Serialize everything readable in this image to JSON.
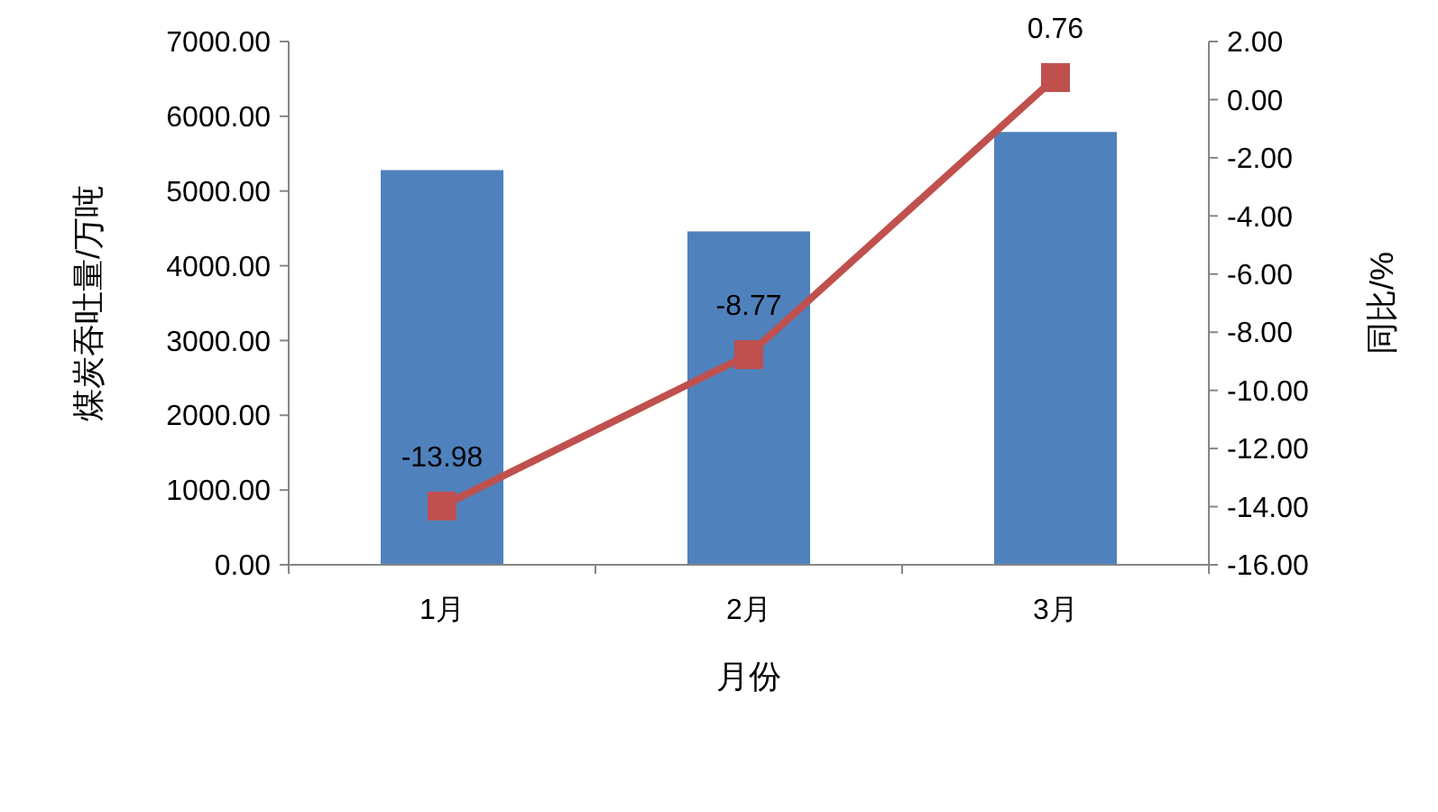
{
  "chart_data": {
    "type": "bar",
    "xlabel": "月份",
    "ylabel": "煤炭吞吐量/万吨",
    "y2label": "同比/%",
    "categories": [
      "1月",
      "2月",
      "3月"
    ],
    "series": [
      {
        "color": "#4f81bd",
        "values": [
          5280,
          4460,
          5790
        ]
      },
      {
        "type": "line",
        "axis": "y2",
        "color": "#c0504d",
        "marker": "square",
        "values": [
          -13.98,
          -8.77,
          0.76
        ],
        "value_labels": [
          "-13.98",
          "-8.77",
          "0.76"
        ]
      }
    ],
    "ylim": [
      0,
      7000
    ],
    "yticks": [
      {
        "value": 0,
        "label": "0.00"
      },
      {
        "value": 1000,
        "label": "1000.00"
      },
      {
        "value": 2000,
        "label": "2000.00"
      },
      {
        "value": 3000,
        "label": "3000.00"
      },
      {
        "value": 4000,
        "label": "4000.00"
      },
      {
        "value": 5000,
        "label": "5000.00"
      },
      {
        "value": 6000,
        "label": "6000.00"
      },
      {
        "value": 7000,
        "label": "7000.00"
      }
    ],
    "y2lim": [
      -16,
      2
    ],
    "y2ticks": [
      {
        "value": -16,
        "label": "-16.00"
      },
      {
        "value": -14,
        "label": "-14.00"
      },
      {
        "value": -12,
        "label": "-12.00"
      },
      {
        "value": -10,
        "label": "-10.00"
      },
      {
        "value": -8,
        "label": "-8.00"
      },
      {
        "value": -6,
        "label": "-6.00"
      },
      {
        "value": -4,
        "label": "-4.00"
      },
      {
        "value": -2,
        "label": "-2.00"
      },
      {
        "value": 0,
        "label": "0.00"
      },
      {
        "value": 2,
        "label": "2.00"
      }
    ],
    "grid": false
  }
}
